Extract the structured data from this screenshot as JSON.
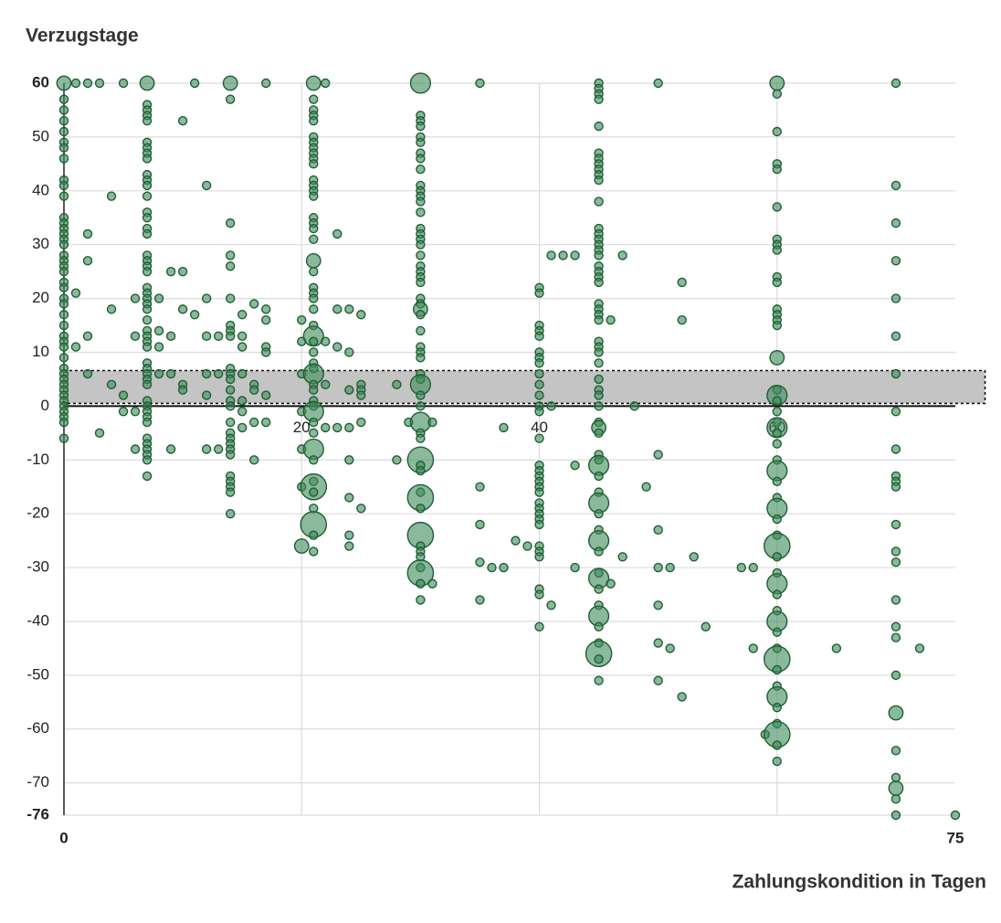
{
  "chart_data": {
    "type": "scatter",
    "title": "Verzugstage",
    "x_label": "Zahlungskondition in Tagen",
    "xlim": [
      0,
      75
    ],
    "ylim": [
      -76,
      60
    ],
    "xticks": [
      0,
      20,
      40,
      60,
      75
    ],
    "yticks": [
      60,
      50,
      40,
      30,
      20,
      10,
      0,
      -10,
      -20,
      -30,
      -40,
      -50,
      -60,
      -70,
      -76
    ],
    "grid": true,
    "color": "#3d8a58",
    "band": {
      "x": [
        0,
        77.5
      ],
      "y": [
        0.5,
        6.6
      ],
      "color": "#c4c4c4"
    },
    "x": [
      0,
      0,
      0,
      0,
      0,
      0,
      0,
      0,
      0,
      0,
      0,
      0,
      0,
      0,
      0,
      0,
      0,
      0,
      0,
      0,
      0,
      0,
      0,
      0,
      0,
      0,
      0,
      0,
      0,
      0,
      0,
      0,
      0,
      0,
      0,
      0,
      0,
      0,
      0,
      0,
      0,
      0,
      0,
      1,
      1,
      1,
      2,
      2,
      2,
      2,
      2,
      3,
      3,
      4,
      4,
      4,
      5,
      5,
      5,
      6,
      6,
      6,
      6,
      7,
      7,
      7,
      7,
      7,
      7,
      7,
      7,
      7,
      7,
      7,
      7,
      7,
      7,
      7,
      7,
      7,
      7,
      7,
      7,
      7,
      7,
      7,
      7,
      7,
      7,
      7,
      7,
      7,
      7,
      7,
      7,
      7,
      7,
      7,
      7,
      7,
      7,
      7,
      7,
      7,
      7,
      7,
      7,
      7,
      7,
      7,
      8,
      8,
      8,
      8,
      9,
      9,
      9,
      9,
      10,
      10,
      10,
      10,
      10,
      11,
      11,
      12,
      12,
      12,
      12,
      12,
      12,
      13,
      13,
      13,
      14,
      14,
      14,
      14,
      14,
      14,
      14,
      14,
      14,
      14,
      14,
      14,
      14,
      14,
      14,
      14,
      14,
      14,
      14,
      14,
      14,
      14,
      14,
      14,
      14,
      14,
      15,
      15,
      15,
      15,
      15,
      15,
      15,
      16,
      16,
      16,
      16,
      16,
      17,
      17,
      17,
      17,
      17,
      17,
      17,
      20,
      20,
      20,
      20,
      20,
      20,
      20,
      21,
      21,
      21,
      21,
      21,
      21,
      21,
      21,
      21,
      21,
      21,
      21,
      21,
      21,
      21,
      21,
      21,
      21,
      21,
      21,
      21,
      21,
      21,
      21,
      21,
      21,
      21,
      21,
      21,
      21,
      21,
      21,
      21,
      21,
      21,
      21,
      21,
      21,
      21,
      21,
      21,
      21,
      21,
      21,
      21,
      21,
      21,
      21,
      22,
      22,
      22,
      22,
      23,
      23,
      23,
      23,
      24,
      24,
      24,
      24,
      24,
      24,
      24,
      24,
      25,
      25,
      25,
      25,
      25,
      25,
      28,
      28,
      29,
      30,
      30,
      30,
      30,
      30,
      30,
      30,
      30,
      30,
      30,
      30,
      30,
      30,
      30,
      30,
      30,
      30,
      30,
      30,
      30,
      30,
      30,
      30,
      30,
      30,
      30,
      30,
      30,
      30,
      30,
      30,
      30,
      30,
      30,
      30,
      30,
      30,
      30,
      30,
      30,
      30,
      30,
      30,
      30,
      30,
      30,
      30,
      30,
      30,
      30,
      30,
      30,
      30,
      31,
      31,
      35,
      35,
      35,
      35,
      35,
      36,
      37,
      37,
      38,
      39,
      40,
      40,
      40,
      40,
      40,
      40,
      40,
      40,
      40,
      40,
      40,
      40,
      40,
      40,
      40,
      40,
      40,
      40,
      40,
      40,
      40,
      40,
      40,
      40,
      40,
      40,
      40,
      40,
      40,
      40,
      40,
      41,
      41,
      41,
      42,
      43,
      43,
      43,
      45,
      45,
      45,
      45,
      45,
      45,
      45,
      45,
      45,
      45,
      45,
      45,
      45,
      45,
      45,
      45,
      45,
      45,
      45,
      45,
      45,
      45,
      45,
      45,
      45,
      45,
      45,
      45,
      45,
      45,
      45,
      45,
      45,
      45,
      45,
      45,
      45,
      45,
      45,
      45,
      45,
      45,
      45,
      45,
      45,
      45,
      45,
      45,
      45,
      45,
      45,
      45,
      45,
      45,
      45,
      45,
      45,
      46,
      46,
      47,
      47,
      48,
      49,
      50,
      50,
      50,
      50,
      50,
      50,
      50,
      51,
      51,
      52,
      52,
      52,
      53,
      54,
      57,
      58,
      58,
      59,
      60,
      60,
      60,
      60,
      60,
      60,
      60,
      60,
      60,
      60,
      60,
      60,
      60,
      60,
      60,
      60,
      60,
      60,
      60,
      60,
      60,
      60,
      60,
      60,
      60,
      60,
      60,
      60,
      60,
      60,
      60,
      60,
      60,
      60,
      60,
      60,
      60,
      60,
      60,
      60,
      60,
      60,
      60,
      60,
      60,
      60,
      60,
      60,
      60,
      65,
      70,
      70,
      70,
      70,
      70,
      70,
      70,
      70,
      70,
      70,
      70,
      70,
      70,
      70,
      70,
      70,
      70,
      70,
      70,
      70,
      70,
      70,
      70,
      70,
      70,
      72,
      75
    ],
    "values": [
      60,
      57,
      55,
      53,
      51,
      49,
      48,
      46,
      42,
      41,
      39,
      35,
      34,
      33,
      32,
      31,
      30,
      28,
      27,
      26,
      25,
      23,
      22,
      20,
      19,
      17,
      15,
      13,
      12,
      11,
      9,
      7,
      6,
      5,
      4,
      3,
      2,
      1,
      0,
      -1,
      -2,
      -3,
      -6,
      60,
      21,
      11,
      60,
      32,
      27,
      13,
      6,
      60,
      -5,
      39,
      18,
      4,
      60,
      2,
      -1,
      20,
      13,
      -1,
      -8,
      60,
      56,
      55,
      54,
      53,
      49,
      48,
      47,
      46,
      43,
      42,
      41,
      39,
      36,
      35,
      33,
      32,
      28,
      27,
      26,
      25,
      22,
      21,
      20,
      19,
      18,
      16,
      14,
      13,
      12,
      11,
      8,
      7,
      6,
      5,
      4,
      1,
      0,
      -1,
      -2,
      -3,
      -6,
      -7,
      -8,
      -9,
      -10,
      -13,
      20,
      14,
      11,
      6,
      25,
      13,
      6,
      -8,
      53,
      25,
      18,
      4,
      3,
      60,
      17,
      41,
      20,
      13,
      6,
      2,
      -8,
      13,
      6,
      -8,
      60,
      57,
      34,
      28,
      26,
      20,
      15,
      14,
      13,
      7,
      6,
      5,
      3,
      1,
      0,
      -3,
      -5,
      -6,
      -7,
      -8,
      -9,
      -13,
      -14,
      -15,
      -16,
      -20,
      17,
      13,
      11,
      6,
      1,
      -1,
      -4,
      19,
      4,
      3,
      -3,
      -10,
      60,
      18,
      16,
      11,
      10,
      2,
      -3,
      16,
      12,
      6,
      -1,
      -8,
      -15,
      -26,
      60,
      57,
      55,
      54,
      53,
      50,
      49,
      48,
      47,
      46,
      45,
      42,
      41,
      40,
      39,
      35,
      34,
      33,
      31,
      27,
      25,
      22,
      21,
      20,
      18,
      15,
      13,
      12,
      10,
      8,
      7,
      6,
      4,
      3,
      1,
      0,
      -1,
      -3,
      -5,
      -8,
      -10,
      -14,
      -15,
      -16,
      -19,
      -22,
      -24,
      -27,
      60,
      12,
      4,
      -4,
      32,
      18,
      11,
      -4,
      18,
      10,
      3,
      -4,
      -10,
      -17,
      -24,
      -26,
      17,
      4,
      3,
      2,
      -3,
      -19,
      4,
      -10,
      -3,
      60,
      54,
      53,
      52,
      50,
      49,
      47,
      46,
      44,
      41,
      40,
      39,
      38,
      36,
      33,
      32,
      31,
      30,
      28,
      26,
      25,
      24,
      23,
      20,
      19,
      18,
      17,
      14,
      11,
      10,
      9,
      6,
      5,
      4,
      2,
      0,
      -3,
      -5,
      -6,
      -10,
      -11,
      -12,
      -16,
      -17,
      -19,
      -24,
      -26,
      -27,
      -28,
      -30,
      -31,
      -33,
      -36,
      -3,
      -33,
      60,
      -15,
      -22,
      -29,
      -36,
      -30,
      -4,
      -30,
      -25,
      -26,
      22,
      21,
      15,
      14,
      13,
      10,
      9,
      8,
      6,
      4,
      2,
      0,
      -1,
      -6,
      -11,
      -12,
      -13,
      -14,
      -15,
      -16,
      -18,
      -19,
      -20,
      -21,
      -22,
      -26,
      -27,
      -28,
      -34,
      -35,
      -41,
      28,
      0,
      -37,
      28,
      28,
      -11,
      -30,
      60,
      59,
      58,
      57,
      52,
      47,
      46,
      45,
      44,
      43,
      42,
      38,
      33,
      32,
      31,
      30,
      29,
      28,
      26,
      25,
      24,
      23,
      19,
      18,
      17,
      16,
      12,
      11,
      10,
      8,
      5,
      3,
      2,
      0,
      -3,
      -4,
      -5,
      -9,
      -10,
      -11,
      -13,
      -16,
      -18,
      -20,
      -23,
      -25,
      -27,
      -31,
      -32,
      -34,
      -37,
      -39,
      -41,
      -44,
      -46,
      -47,
      -51,
      16,
      -33,
      28,
      -28,
      0,
      -15,
      60,
      -9,
      -23,
      -30,
      -37,
      -44,
      -51,
      -30,
      -45,
      23,
      16,
      -54,
      -28,
      -41,
      -30,
      -30,
      -45,
      -61,
      60,
      58,
      51,
      45,
      44,
      37,
      31,
      30,
      29,
      24,
      23,
      18,
      17,
      16,
      15,
      9,
      3,
      2,
      1,
      -1,
      -3,
      -4,
      -5,
      -7,
      -10,
      -12,
      -14,
      -17,
      -19,
      -21,
      -24,
      -26,
      -28,
      -31,
      -33,
      -35,
      -38,
      -40,
      -42,
      -45,
      -47,
      -49,
      -52,
      -54,
      -56,
      -59,
      -61,
      -63,
      -66,
      -45,
      60,
      41,
      34,
      27,
      20,
      13,
      6,
      -1,
      -8,
      -13,
      -14,
      -15,
      -22,
      -27,
      -29,
      -36,
      -41,
      -43,
      -50,
      -57,
      -64,
      -69,
      -71,
      -73,
      -76,
      -45,
      -76
    ],
    "sizes": [
      2,
      1,
      1,
      1,
      1,
      1,
      1,
      1,
      1,
      1,
      1,
      1,
      1,
      1,
      1,
      1,
      1,
      1,
      1,
      1,
      1,
      1,
      1,
      1,
      1,
      1,
      1,
      1,
      1,
      1,
      1,
      1,
      1,
      1,
      1,
      1,
      1,
      1,
      1,
      1,
      1,
      1,
      1,
      1,
      1,
      1,
      1,
      1,
      1,
      1,
      1,
      1,
      1,
      1,
      1,
      1,
      1,
      1,
      1,
      1,
      1,
      1,
      1,
      2,
      1,
      1,
      1,
      1,
      1,
      1,
      1,
      1,
      1,
      1,
      1,
      1,
      1,
      1,
      1,
      1,
      1,
      1,
      1,
      1,
      1,
      1,
      1,
      1,
      1,
      1,
      1,
      1,
      1,
      1,
      1,
      1,
      1,
      1,
      1,
      1,
      1,
      1,
      1,
      1,
      1,
      1,
      1,
      1,
      1,
      1,
      1,
      1,
      1,
      1,
      1,
      1,
      1,
      1,
      1,
      1,
      1,
      1,
      1,
      1,
      1,
      1,
      1,
      1,
      1,
      1,
      1,
      1,
      1,
      1,
      2,
      1,
      1,
      1,
      1,
      1,
      1,
      1,
      1,
      1,
      1,
      1,
      1,
      1,
      1,
      1,
      1,
      1,
      1,
      1,
      1,
      1,
      1,
      1,
      1,
      1,
      1,
      1,
      1,
      1,
      1,
      1,
      1,
      1,
      1,
      1,
      1,
      1,
      1,
      1,
      1,
      1,
      1,
      1,
      1,
      1,
      1,
      1,
      1,
      1,
      1,
      2,
      2,
      1,
      1,
      1,
      1,
      1,
      1,
      1,
      1,
      1,
      1,
      1,
      1,
      1,
      1,
      1,
      1,
      1,
      1,
      2,
      1,
      1,
      1,
      1,
      1,
      1,
      3,
      1,
      1,
      1,
      1,
      3,
      1,
      1,
      1,
      1,
      3,
      1,
      1,
      3,
      1,
      1,
      4,
      1,
      1,
      4,
      1,
      1,
      1,
      1,
      1,
      1,
      1,
      1,
      1,
      1,
      1,
      1,
      1,
      1,
      1,
      1,
      1,
      1,
      1,
      1,
      1,
      1,
      1,
      1,
      1,
      1,
      1,
      3,
      1,
      1,
      1,
      1,
      1,
      1,
      1,
      1,
      1,
      1,
      1,
      1,
      1,
      1,
      1,
      1,
      1,
      1,
      1,
      1,
      1,
      1,
      1,
      1,
      2,
      1,
      1,
      1,
      1,
      1,
      1,
      1,
      3,
      1,
      1,
      3,
      1,
      1,
      4,
      1,
      1,
      1,
      4,
      1,
      4,
      1,
      1,
      1,
      1,
      4,
      1,
      1,
      1,
      1,
      1,
      1,
      1,
      1,
      1,
      1,
      1,
      1,
      1,
      1,
      1,
      1,
      1,
      1,
      1,
      1,
      1,
      1,
      1,
      1,
      1,
      1,
      1,
      1,
      1,
      1,
      1,
      1,
      1,
      1,
      1,
      1,
      1,
      1,
      1,
      1,
      1,
      1,
      1,
      1,
      1,
      1,
      1,
      1,
      1,
      1,
      1,
      1,
      1,
      1,
      1,
      1,
      1,
      1,
      1,
      1,
      1,
      1,
      1,
      1,
      1,
      1,
      1,
      1,
      1,
      1,
      1,
      1,
      1,
      1,
      1,
      1,
      1,
      1,
      1,
      1,
      1,
      1,
      1,
      1,
      1,
      1,
      1,
      2,
      1,
      1,
      1,
      3,
      1,
      1,
      3,
      1,
      1,
      3,
      1,
      1,
      3,
      1,
      1,
      3,
      1,
      1,
      4,
      1,
      1,
      1,
      1,
      1,
      1,
      1,
      1,
      1,
      1,
      1,
      1,
      1,
      1,
      1,
      1,
      1,
      1,
      1,
      1,
      1,
      1,
      1,
      1,
      1,
      1,
      2,
      1,
      1,
      1,
      1,
      1,
      1,
      1,
      1,
      1,
      1,
      1,
      1,
      1,
      1,
      2,
      1,
      3,
      1,
      1,
      1,
      3,
      1,
      1,
      1,
      3,
      1,
      1,
      3,
      1,
      1,
      4,
      1,
      1,
      3,
      1,
      1,
      3,
      1,
      1,
      4,
      1,
      1,
      3,
      1,
      1,
      4,
      1,
      1,
      1,
      1,
      1,
      1,
      1,
      1,
      1,
      1,
      1,
      1,
      1,
      1,
      1,
      1,
      1,
      1,
      1,
      1,
      1,
      1,
      2,
      1,
      1,
      2,
      1,
      1,
      1,
      1
    ]
  }
}
